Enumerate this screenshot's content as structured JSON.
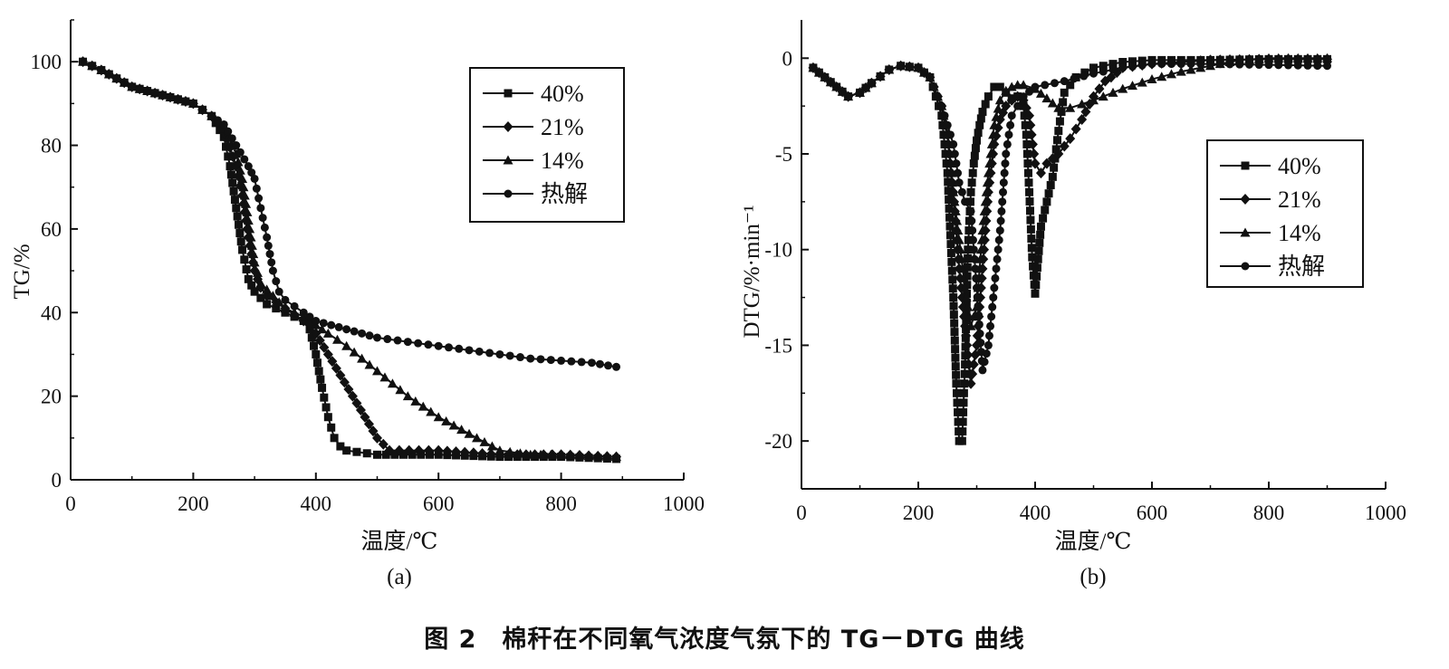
{
  "figure_caption": "图 2　棉秆在不同氧气浓度气氛下的 TG－DTG 曲线",
  "chart_data": [
    {
      "type": "line",
      "panel_label": "(a)",
      "xlabel": "温度/℃",
      "ylabel": "TG/%",
      "xlim": [
        0,
        1000
      ],
      "ylim": [
        0,
        110
      ],
      "xticks": [
        0,
        200,
        400,
        600,
        800,
        1000
      ],
      "yticks": [
        0,
        20,
        40,
        60,
        80,
        100
      ],
      "grid": false,
      "legend_position": "top-right",
      "series": [
        {
          "name": "40%",
          "marker": "square",
          "x": [
            20,
            50,
            100,
            150,
            200,
            230,
            250,
            260,
            270,
            280,
            290,
            300,
            320,
            350,
            380,
            390,
            400,
            410,
            420,
            430,
            440,
            450,
            500,
            600,
            700,
            800,
            890
          ],
          "y": [
            100,
            98,
            94,
            92,
            90,
            87,
            82,
            75,
            65,
            55,
            48,
            45,
            42,
            40,
            38,
            36,
            30,
            22,
            15,
            10,
            8,
            7,
            6,
            6,
            5.5,
            5.5,
            5
          ]
        },
        {
          "name": "21%",
          "marker": "diamond",
          "x": [
            20,
            50,
            100,
            150,
            200,
            230,
            250,
            270,
            280,
            290,
            300,
            310,
            320,
            350,
            380,
            390,
            400,
            420,
            440,
            460,
            480,
            500,
            520,
            600,
            700,
            800,
            890
          ],
          "y": [
            100,
            98,
            94,
            92,
            90,
            87,
            84,
            75,
            68,
            58,
            50,
            46,
            44,
            41,
            38,
            37,
            35,
            30,
            25,
            20,
            15,
            10,
            7,
            7,
            6,
            6,
            5.5
          ]
        },
        {
          "name": "14%",
          "marker": "triangle",
          "x": [
            20,
            50,
            100,
            150,
            200,
            230,
            250,
            270,
            280,
            290,
            300,
            310,
            330,
            350,
            380,
            400,
            420,
            450,
            500,
            550,
            600,
            650,
            700,
            750,
            800,
            890
          ],
          "y": [
            100,
            98,
            94,
            92,
            90,
            87,
            84,
            78,
            72,
            62,
            52,
            47,
            44,
            41,
            39,
            37,
            35,
            32,
            26,
            20,
            15,
            11,
            7,
            6,
            6,
            5.5
          ]
        },
        {
          "name": "热解",
          "marker": "circle",
          "x": [
            20,
            50,
            100,
            150,
            200,
            230,
            250,
            270,
            290,
            300,
            310,
            320,
            330,
            340,
            350,
            380,
            400,
            450,
            500,
            550,
            600,
            650,
            700,
            750,
            800,
            850,
            890
          ],
          "y": [
            100,
            98,
            94,
            92,
            90,
            87,
            85,
            80,
            75,
            72,
            65,
            58,
            50,
            45,
            43,
            40,
            38,
            36,
            34,
            33,
            32,
            31,
            30,
            29,
            28.5,
            28,
            27
          ]
        }
      ]
    },
    {
      "type": "line",
      "panel_label": "(b)",
      "xlabel": "温度/℃",
      "ylabel": "DTG/%·min⁻¹",
      "xlim": [
        0,
        1000
      ],
      "ylim": [
        -22.5,
        2
      ],
      "xticks": [
        0,
        200,
        400,
        600,
        800,
        1000
      ],
      "yticks": [
        0,
        -5,
        -10,
        -15,
        -20
      ],
      "grid": false,
      "legend_position": "right",
      "series": [
        {
          "name": "40%",
          "marker": "square",
          "x": [
            20,
            40,
            60,
            80,
            100,
            120,
            150,
            170,
            200,
            220,
            240,
            250,
            260,
            265,
            270,
            275,
            280,
            285,
            290,
            295,
            300,
            305,
            310,
            320,
            330,
            340,
            350,
            360,
            370,
            380,
            385,
            390,
            395,
            400,
            405,
            410,
            420,
            430,
            440,
            450,
            470,
            500,
            550,
            600,
            700,
            800,
            900
          ],
          "y": [
            -0.5,
            -1,
            -1.5,
            -2,
            -1.8,
            -1.3,
            -0.6,
            -0.4,
            -0.5,
            -1,
            -3,
            -6,
            -12.5,
            -17,
            -20,
            -20,
            -16,
            -10,
            -7,
            -5.5,
            -4.3,
            -3.5,
            -2.8,
            -2,
            -1.5,
            -1.5,
            -1.8,
            -2.1,
            -2,
            -2.5,
            -4,
            -7,
            -10.4,
            -12.3,
            -10.5,
            -8.8,
            -7.5,
            -6.2,
            -3.8,
            -1.8,
            -1,
            -0.5,
            -0.2,
            -0.1,
            -0.1,
            -0.05,
            -0.05
          ]
        },
        {
          "name": "21%",
          "marker": "diamond",
          "x": [
            20,
            40,
            60,
            80,
            100,
            120,
            150,
            170,
            200,
            220,
            240,
            250,
            260,
            270,
            280,
            290,
            300,
            310,
            320,
            330,
            340,
            350,
            360,
            370,
            380,
            390,
            400,
            410,
            420,
            440,
            460,
            480,
            500,
            520,
            530,
            550,
            600,
            700,
            800,
            900
          ],
          "y": [
            -0.5,
            -1,
            -1.5,
            -2,
            -1.8,
            -1.3,
            -0.6,
            -0.4,
            -0.5,
            -1,
            -2.5,
            -4,
            -7,
            -11,
            -14,
            -17,
            -15,
            -11,
            -7,
            -4.5,
            -3.2,
            -2.5,
            -2.2,
            -2,
            -2.2,
            -3,
            -5.5,
            -6,
            -5.5,
            -5,
            -4.2,
            -3.2,
            -2,
            -1.2,
            -1,
            -0.5,
            -0.3,
            -0.1,
            -0.05,
            -0.05
          ]
        },
        {
          "name": "14%",
          "marker": "triangle",
          "x": [
            20,
            40,
            60,
            80,
            100,
            120,
            150,
            170,
            200,
            220,
            240,
            250,
            260,
            270,
            280,
            290,
            300,
            310,
            320,
            330,
            340,
            350,
            360,
            370,
            380,
            400,
            420,
            440,
            460,
            480,
            500,
            550,
            600,
            650,
            700,
            750,
            800,
            900
          ],
          "y": [
            -0.5,
            -1,
            -1.5,
            -2,
            -1.8,
            -1.3,
            -0.6,
            -0.4,
            -0.5,
            -1,
            -2.5,
            -4,
            -7,
            -9.5,
            -12,
            -14,
            -13,
            -9,
            -6,
            -3.5,
            -2.2,
            -1.7,
            -1.5,
            -1.4,
            -1.4,
            -1.6,
            -2.1,
            -2.6,
            -2.6,
            -2.4,
            -2.2,
            -1.6,
            -1.1,
            -0.7,
            -0.4,
            -0.1,
            0,
            0
          ]
        },
        {
          "name": "热解",
          "marker": "circle",
          "x": [
            20,
            40,
            60,
            80,
            100,
            120,
            150,
            170,
            200,
            220,
            240,
            260,
            270,
            280,
            290,
            300,
            310,
            320,
            330,
            340,
            350,
            360,
            380,
            400,
            450,
            500,
            550,
            600,
            700,
            800,
            900
          ],
          "y": [
            -0.5,
            -1,
            -1.5,
            -2,
            -1.8,
            -1.3,
            -0.6,
            -0.4,
            -0.5,
            -1,
            -2.5,
            -4.5,
            -6.5,
            -7.5,
            -8,
            -12,
            -16.3,
            -15,
            -12,
            -9,
            -5,
            -3,
            -2,
            -1.5,
            -1.2,
            -0.8,
            -0.5,
            -0.3,
            -0.3,
            -0.35,
            -0.4
          ]
        }
      ]
    }
  ]
}
